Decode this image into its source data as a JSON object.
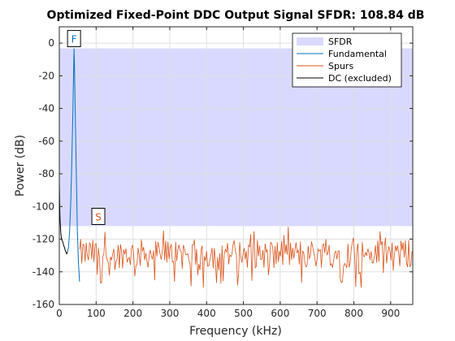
{
  "chart_data": {
    "type": "line",
    "title": "Optimized Fixed-Point DDC Output Signal SFDR: 108.84 dB",
    "xlabel": "Frequency (kHz)",
    "ylabel": "Power (dB)",
    "xlim": [
      0,
      960
    ],
    "ylim": [
      -160,
      10
    ],
    "xticks": [
      0,
      100,
      200,
      300,
      400,
      500,
      600,
      700,
      800,
      900
    ],
    "yticks": [
      -160,
      -140,
      -120,
      -100,
      -80,
      -60,
      -40,
      -20,
      0
    ],
    "grid": true,
    "legend_position": "top-right",
    "legend": [
      "SFDR",
      "Fundamental",
      "Spurs",
      "DC (excluded)"
    ],
    "sfdr_band": {
      "top": -3.2,
      "bottom": -112.04,
      "color": "#d9d9ff"
    },
    "fundamental": {
      "name": "Fundamental",
      "color": "#0072bd",
      "x": [
        22,
        25,
        28,
        31,
        33,
        35,
        37,
        38,
        39,
        40,
        41,
        42,
        43,
        45,
        47,
        49,
        52,
        55
      ],
      "y": [
        -128,
        -125,
        -115,
        -98,
        -80,
        -60,
        -40,
        -28,
        -15,
        -3.2,
        -12,
        -25,
        -40,
        -65,
        -90,
        -115,
        -135,
        -146
      ]
    },
    "spurs": {
      "name": "Spurs",
      "color": "#d95319",
      "x_start": 55,
      "x_end": 960,
      "x_step": 3,
      "range": [
        -150,
        -112
      ],
      "typical": [
        -138,
        -120
      ]
    },
    "dc": {
      "name": "DC (excluded)",
      "color": "#000000",
      "x": [
        0,
        1,
        2,
        3,
        4,
        5,
        6,
        8,
        10,
        12,
        14,
        16,
        18,
        20,
        22
      ],
      "y": [
        -85,
        -100,
        -108,
        -112,
        -116,
        -118,
        -120,
        -121,
        -122,
        -124,
        -125,
        -127,
        -128,
        -129,
        -128
      ]
    },
    "markers": [
      {
        "label": "F",
        "x": 40,
        "y": -3.2,
        "color": "#0072bd"
      },
      {
        "label": "S",
        "x": 106,
        "y": -112.04,
        "color": "#d95319"
      }
    ]
  }
}
